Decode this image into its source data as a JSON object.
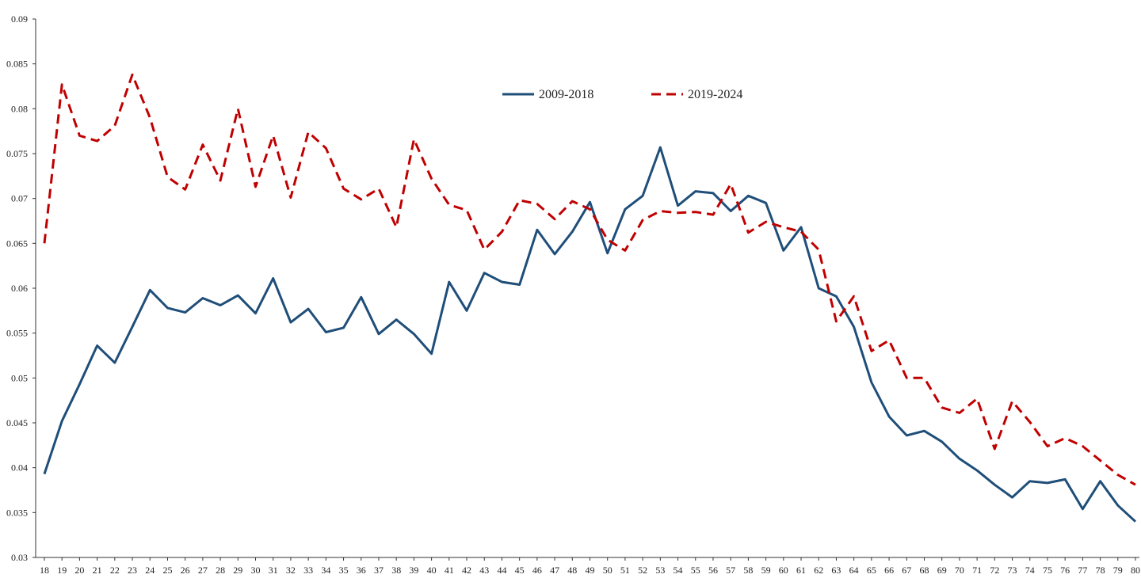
{
  "chart_data": {
    "type": "line",
    "title": "",
    "xlabel": "",
    "ylabel": "",
    "ylim": [
      0.03,
      0.09
    ],
    "yticks": [
      "0.03",
      "0.035",
      "0.04",
      "0.045",
      "0.05",
      "0.055",
      "0.06",
      "0.065",
      "0.07",
      "0.075",
      "0.08",
      "0.085",
      "0.09"
    ],
    "grid": false,
    "legend_position": "top-center",
    "categories": [
      "18",
      "19",
      "20",
      "21",
      "22",
      "23",
      "24",
      "25",
      "26",
      "27",
      "28",
      "29",
      "30",
      "31",
      "32",
      "33",
      "34",
      "35",
      "36",
      "37",
      "38",
      "39",
      "40",
      "41",
      "42",
      "43",
      "44",
      "45",
      "46",
      "47",
      "48",
      "49",
      "50",
      "51",
      "52",
      "53",
      "54",
      "55",
      "56",
      "57",
      "58",
      "59",
      "60",
      "61",
      "62",
      "63",
      "64",
      "65",
      "66",
      "67",
      "68",
      "69",
      "70",
      "71",
      "72",
      "73",
      "74",
      "75",
      "76",
      "77",
      "78",
      "79",
      "80"
    ],
    "series": [
      {
        "name": "2009-2018",
        "color": "#1f4e79",
        "dash": "solid",
        "values": [
          0.0393,
          0.0452,
          0.0493,
          0.0536,
          0.0517,
          0.0557,
          0.0598,
          0.0578,
          0.0573,
          0.0589,
          0.0581,
          0.0592,
          0.0572,
          0.0611,
          0.0562,
          0.0577,
          0.0551,
          0.0556,
          0.059,
          0.0549,
          0.0565,
          0.0549,
          0.0527,
          0.0607,
          0.0575,
          0.0617,
          0.0607,
          0.0604,
          0.0665,
          0.0638,
          0.0663,
          0.0696,
          0.0639,
          0.0688,
          0.0703,
          0.0757,
          0.0692,
          0.0708,
          0.0706,
          0.0686,
          0.0703,
          0.0695,
          0.0642,
          0.0668,
          0.06,
          0.0591,
          0.0557,
          0.0495,
          0.0457,
          0.0436,
          0.0441,
          0.0429,
          0.041,
          0.0397,
          0.0381,
          0.0367,
          0.0385,
          0.0383,
          0.0387,
          0.0354,
          0.0385,
          0.0358,
          0.034
        ]
      },
      {
        "name": "2019-2024",
        "color": "#c00000",
        "dash": "dashed",
        "values": [
          0.065,
          0.0827,
          0.077,
          0.0764,
          0.0781,
          0.0838,
          0.079,
          0.0724,
          0.071,
          0.076,
          0.072,
          0.08,
          0.0713,
          0.077,
          0.0701,
          0.0774,
          0.0756,
          0.0711,
          0.0699,
          0.0711,
          0.0668,
          0.0766,
          0.0722,
          0.0693,
          0.0687,
          0.0643,
          0.0663,
          0.0698,
          0.0694,
          0.0677,
          0.0697,
          0.0688,
          0.0654,
          0.0642,
          0.0676,
          0.0686,
          0.0684,
          0.0685,
          0.0682,
          0.0716,
          0.0662,
          0.0674,
          0.0668,
          0.0663,
          0.0643,
          0.0563,
          0.0591,
          0.053,
          0.0542,
          0.05,
          0.05,
          0.0467,
          0.0461,
          0.0477,
          0.0421,
          0.0474,
          0.0451,
          0.0424,
          0.0433,
          0.0424,
          0.0408,
          0.0392,
          0.0381
        ]
      }
    ]
  }
}
